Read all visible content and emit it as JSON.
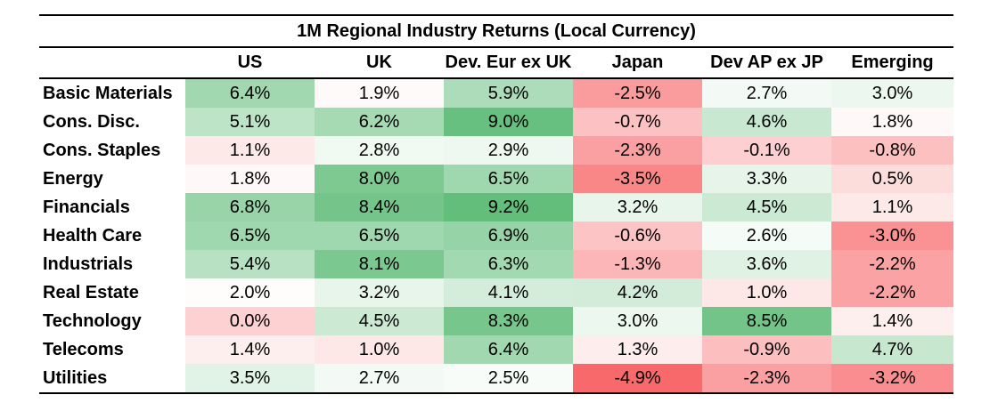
{
  "chart_data": {
    "type": "heatmap",
    "title": "1M Regional Industry Returns  (Local Currency)",
    "columns": [
      "US",
      "UK",
      "Dev. Eur ex UK",
      "Japan",
      "Dev AP ex JP",
      "Emerging"
    ],
    "rows": [
      {
        "label": "Basic Materials",
        "values": [
          6.4,
          1.9,
          5.9,
          -2.5,
          2.7,
          3.0
        ]
      },
      {
        "label": "Cons. Disc.",
        "values": [
          5.1,
          6.2,
          9.0,
          -0.7,
          4.6,
          1.8
        ]
      },
      {
        "label": "Cons. Staples",
        "values": [
          1.1,
          2.8,
          2.9,
          -2.3,
          -0.1,
          -0.8
        ]
      },
      {
        "label": "Energy",
        "values": [
          1.8,
          8.0,
          6.5,
          -3.5,
          3.3,
          0.5
        ]
      },
      {
        "label": "Financials",
        "values": [
          6.8,
          8.4,
          9.2,
          3.2,
          4.5,
          1.1
        ]
      },
      {
        "label": "Health Care",
        "values": [
          6.5,
          6.5,
          6.9,
          -0.6,
          2.6,
          -3.0
        ]
      },
      {
        "label": "Industrials",
        "values": [
          5.4,
          8.1,
          6.3,
          -1.3,
          3.6,
          -2.2
        ]
      },
      {
        "label": "Real Estate",
        "values": [
          2.0,
          3.2,
          4.1,
          4.2,
          1.0,
          -2.2
        ]
      },
      {
        "label": "Technology",
        "values": [
          0.0,
          4.5,
          8.3,
          3.0,
          8.5,
          1.4
        ]
      },
      {
        "label": "Telecoms",
        "values": [
          1.4,
          1.0,
          6.4,
          1.3,
          -0.9,
          4.7
        ]
      },
      {
        "label": "Utilities",
        "values": [
          3.5,
          2.7,
          2.5,
          -4.9,
          -2.3,
          -3.2
        ]
      }
    ],
    "value_suffix": "%",
    "decimals": 1,
    "color_scale": {
      "low": "#f8696b",
      "mid": "#ffffff",
      "high": "#63be7b"
    }
  }
}
